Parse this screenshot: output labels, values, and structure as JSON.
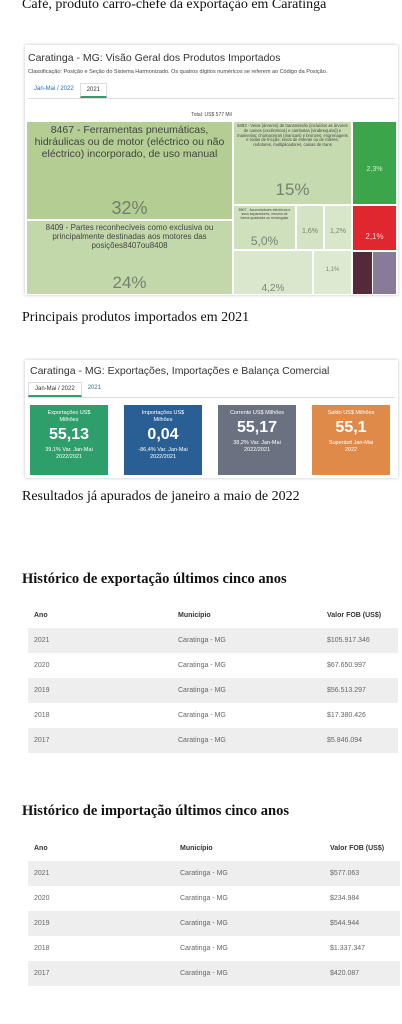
{
  "captions": [
    "Café, produto carro-chefe da exportação em Caratinga",
    "Principais produtos importados em 2021",
    "Resultados já apurados de janeiro a maio de 2022"
  ],
  "treemap_panel": {
    "title": "Caratinga - MG: Visão Geral dos Produtos Importados",
    "subtitle": "Classificação: Posição e Seção do Sistema Harmonizado. Os quatros dígitos numéricos se referem ao Código da Posição.",
    "tabs": [
      "Jan-Mai / 2022",
      "2021"
    ],
    "total": "Total: US$ 577 Mil",
    "tiles": [
      {
        "label": "8467 - Ferramentas pneumáticas, hidráulicas ou de motor (eléctrico ou não eléctrico) incorporado, de uso manual",
        "share": "32%"
      },
      {
        "label": "8409 - Partes reconhecíveis como exclusiva ou principalmente destinadas aos motores das posições8407ou8408",
        "share": "24%"
      },
      {
        "label": "8483 - Veios (árvores) de transmissão (incluídos as árvores de cames (excêntricos) e cambotas (virabrequins)) e manivelas; chumaceiras (mancais) e bronzes; engrenagens e rodas de fricção; eixos de esferas ou de roletes; redutores, multiplicadores, caixas de trans",
        "share": "15%"
      },
      {
        "label": "8507 - Acumuladores eléctricos e seus separadores, mesmo de forma quadrada ou rectangular",
        "share": "5,0%"
      },
      {
        "share": "1,6%"
      },
      {
        "share": "1,2%"
      },
      {
        "share": "4,2%"
      },
      {
        "share": "1,1%"
      },
      {
        "share": "2,3%"
      },
      {
        "share": "2,1%"
      }
    ]
  },
  "kpi_panel": {
    "title": "Caratinga - MG: Exportações, Importações e Balança Comercial",
    "tabs": [
      "Jan-Mai / 2022",
      "2021"
    ],
    "cards": [
      {
        "label": "Exportações US$ Milhões",
        "value": "55,13",
        "note": "39,1% Var. Jan-Mai 2022/2021"
      },
      {
        "label": "Importações US$ Milhões",
        "value": "0,04",
        "note": "-86,4% Var. Jan-Mai 2022/2021"
      },
      {
        "label": "Corrente US$ Milhões",
        "value": "55,17",
        "note": "38,2% Var. Jan-Mai 2022/2021"
      },
      {
        "label": "Saldo US$ Milhões",
        "value": "55,1",
        "note": "Superávit Jan-Mai 2022"
      }
    ]
  },
  "export_history": {
    "heading": "Histórico de exportação últimos cinco anos",
    "columns": [
      "Ano",
      "Município",
      "Valor FOB (US$)"
    ],
    "rows": [
      [
        "2021",
        "Caratinga - MG",
        "$105.917.346"
      ],
      [
        "2020",
        "Caratinga - MG",
        "$67.650.997"
      ],
      [
        "2019",
        "Caratinga - MG",
        "$56.513.297"
      ],
      [
        "2018",
        "Caratinga - MG",
        "$17.380.426"
      ],
      [
        "2017",
        "Caratinga - MG",
        "$5.846.094"
      ]
    ]
  },
  "import_history": {
    "heading": "Histórico de importação últimos cinco anos",
    "columns": [
      "Ano",
      "Município",
      "Valor FOB (US$)"
    ],
    "rows": [
      [
        "2021",
        "Caratinga - MG",
        "$577.063"
      ],
      [
        "2020",
        "Caratinga - MG",
        "$234.984"
      ],
      [
        "2019",
        "Caratinga - MG",
        "$544.944"
      ],
      [
        "2018",
        "Caratinga - MG",
        "$1.337.347"
      ],
      [
        "2017",
        "Caratinga - MG",
        "$420.087"
      ]
    ]
  }
}
